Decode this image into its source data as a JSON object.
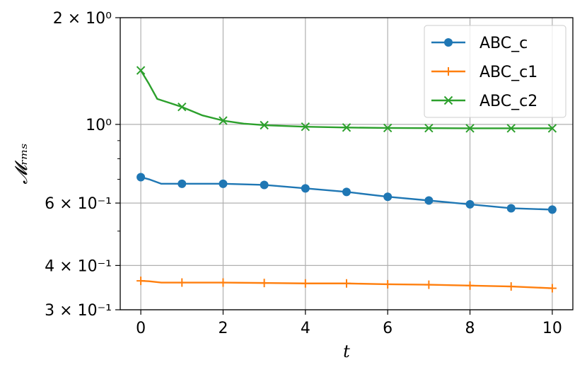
{
  "chart_data": {
    "type": "line",
    "title": "",
    "xlabel": "t",
    "ylabel": "𝓜ᵣₘₛ",
    "y_scale": "log",
    "xlim": [
      -0.5,
      10.5
    ],
    "ylim": [
      0.3,
      2.0
    ],
    "grid": true,
    "legend_position": "top-right",
    "x_ticks": [
      0,
      2,
      4,
      6,
      8,
      10
    ],
    "x_tick_labels": [
      "0",
      "2",
      "4",
      "6",
      "8",
      "10"
    ],
    "y_major_ticks": [
      {
        "value": 0.3,
        "label": "3 × 10⁻¹"
      },
      {
        "value": 0.4,
        "label": "4 × 10⁻¹"
      },
      {
        "value": 0.6,
        "label": "6 × 10⁻¹"
      },
      {
        "value": 1.0,
        "label": "10⁰"
      },
      {
        "value": 2.0,
        "label": "2 × 10⁰"
      }
    ],
    "y_minor_ticks": [
      0.5,
      0.7,
      0.8,
      0.9
    ],
    "series": [
      {
        "name": "ABC_c",
        "color": "#1f77b4",
        "marker": "circle",
        "x": [
          0,
          0.2,
          0.5,
          1,
          1.5,
          2,
          3,
          4,
          5,
          6,
          7,
          8,
          9,
          10
        ],
        "y": [
          0.71,
          0.7,
          0.68,
          0.68,
          0.68,
          0.68,
          0.675,
          0.66,
          0.645,
          0.625,
          0.61,
          0.595,
          0.58,
          0.575
        ],
        "marker_x": [
          0,
          1,
          2,
          3,
          4,
          5,
          6,
          7,
          8,
          9,
          10
        ],
        "marker_y": [
          0.71,
          0.68,
          0.68,
          0.675,
          0.66,
          0.645,
          0.625,
          0.61,
          0.595,
          0.58,
          0.575
        ]
      },
      {
        "name": "ABC_c1",
        "color": "#ff7f0e",
        "marker": "plus",
        "x": [
          0,
          0.2,
          0.5,
          1,
          2,
          3,
          4,
          5,
          6,
          7,
          8,
          9,
          10
        ],
        "y": [
          0.362,
          0.361,
          0.358,
          0.358,
          0.358,
          0.357,
          0.356,
          0.356,
          0.354,
          0.353,
          0.351,
          0.349,
          0.345
        ],
        "marker_x": [
          0,
          1,
          2,
          3,
          4,
          5,
          6,
          7,
          8,
          9,
          10
        ],
        "marker_y": [
          0.362,
          0.358,
          0.358,
          0.357,
          0.356,
          0.356,
          0.354,
          0.353,
          0.351,
          0.349,
          0.345
        ]
      },
      {
        "name": "ABC_c2",
        "color": "#2ca02c",
        "marker": "x",
        "x": [
          0,
          0.2,
          0.4,
          0.7,
          1,
          1.5,
          2,
          2.5,
          3,
          4,
          5,
          6,
          7,
          8,
          9,
          10
        ],
        "y": [
          1.42,
          1.3,
          1.18,
          1.15,
          1.12,
          1.06,
          1.025,
          1.005,
          0.995,
          0.985,
          0.98,
          0.977,
          0.976,
          0.975,
          0.975,
          0.975
        ],
        "marker_x": [
          0,
          1,
          2,
          3,
          4,
          5,
          6,
          7,
          8,
          9,
          10
        ],
        "marker_y": [
          1.42,
          1.12,
          1.025,
          0.995,
          0.985,
          0.98,
          0.977,
          0.976,
          0.975,
          0.975,
          0.975
        ]
      }
    ]
  }
}
